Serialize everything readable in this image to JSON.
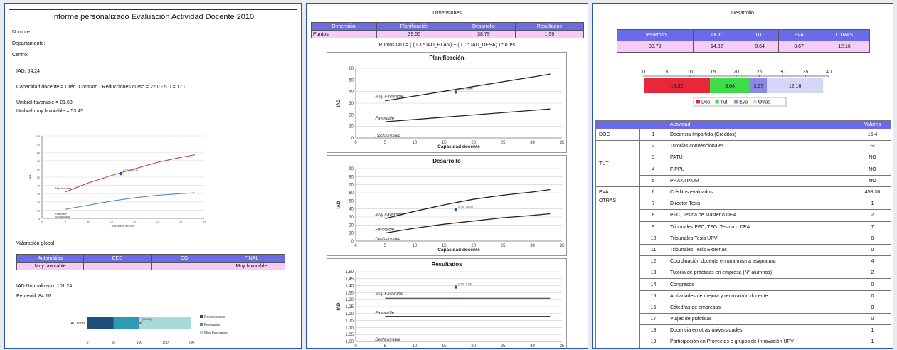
{
  "report": {
    "title": "Informe personalizado Evaluación Actividad Docente 2010",
    "nombre": "Nombre:",
    "departamento": "Departamento:",
    "centro": "Centro:",
    "iad": "IAD:  54.24",
    "capacidad": "Capacidad docente = Créd. Contrato - Reducciones curso = 22.0 - 5.0 = 17.0",
    "umbral_fav": "Umbral favorable = 21.63",
    "umbral_muy": "Umbral muy favorable = 53.45",
    "valoracion": "Valoración global",
    "val_headers": [
      "Automática",
      "CED",
      "CG",
      "FINAL"
    ],
    "val_values": [
      "Muy favorable",
      "",
      "",
      "Muy favorable"
    ],
    "iad_norm": "IAD Normalizado: 101.24",
    "percentil": "Percentil: 84.16"
  },
  "chart_p1": {
    "type": "line",
    "xlabel": "Capacidad docente",
    "ylabel": "IAD",
    "ylim": [
      0,
      100
    ],
    "xlim": [
      0,
      35
    ],
    "yticks": [
      "100",
      "90",
      "80",
      "70",
      "60",
      "50",
      "40",
      "30",
      "20",
      "10",
      "0"
    ],
    "xticks": [
      "0",
      "5",
      "10",
      "15",
      "20",
      "25",
      "30",
      "35"
    ],
    "labels": [
      "Muy favorable",
      "Favorable",
      "Desfavorable"
    ],
    "point_label": "(17.0 , 54.24)",
    "point": [
      17,
      54.24
    ],
    "series": [
      {
        "x": [
          5,
          10,
          15,
          20,
          25,
          30,
          33
        ],
        "y": [
          32,
          43,
          52,
          60,
          68,
          74,
          77
        ],
        "color": "#c0392b"
      },
      {
        "x": [
          5,
          10,
          15,
          20,
          25,
          30,
          33
        ],
        "y": [
          11,
          16,
          21,
          25,
          28,
          30,
          31
        ],
        "color": "#4a7fb5"
      }
    ]
  },
  "bar_p1": {
    "category": "IAD norm",
    "xticks": [
      "0",
      "50",
      "100",
      "150",
      "200"
    ],
    "xlim": [
      0,
      200
    ],
    "segments": [
      {
        "name": "Desfavorable",
        "value": 50,
        "color": "#1f4e79"
      },
      {
        "name": "Favorable",
        "value": 50,
        "color": "#2e9bb5"
      },
      {
        "name": "Muy Favorable",
        "value": 100,
        "color": "#a8d8d8"
      }
    ],
    "point": 101.24,
    "point_label": "(101.24)"
  },
  "dimensiones": {
    "title": "Dimensiones",
    "headers": [
      "Dimensión",
      "Planificación",
      "Desarrollo",
      "Resultados"
    ],
    "row": [
      "Puntos",
      "39.55",
      "38.79",
      "1.39"
    ],
    "formula": "Puntos IAD = ( (0.3 * IAD_PLAN) + (0.7 * IAD_DESA) ) * Kres"
  },
  "charts_p2": [
    {
      "type": "line",
      "title": "Planificación",
      "ylabel": "IAD",
      "xlabel": "Capacidad docente",
      "yticks": [
        "60",
        "50",
        "40",
        "30",
        "20",
        "10",
        "0"
      ],
      "xticks": [
        "0",
        "5",
        "10",
        "15",
        "20",
        "25",
        "30",
        "35"
      ],
      "ylim": [
        0,
        60
      ],
      "labels": [
        "Muy Favorable",
        "Favorable",
        "Desfavorable"
      ],
      "point": [
        17,
        39.55
      ],
      "point_label": "(17.0 , 39.55)",
      "series": [
        {
          "x": [
            5,
            33
          ],
          "y": [
            32,
            55
          ]
        },
        {
          "x": [
            5,
            33
          ],
          "y": [
            14,
            25
          ]
        }
      ]
    },
    {
      "type": "line",
      "title": "Desarrollo",
      "ylabel": "IAD",
      "xlabel": "Capacidad docente",
      "yticks": [
        "90",
        "80",
        "70",
        "60",
        "50",
        "40",
        "30",
        "20",
        "10",
        "0"
      ],
      "xticks": [
        "0",
        "5",
        "10",
        "15",
        "20",
        "25",
        "30",
        "35"
      ],
      "ylim": [
        0,
        90
      ],
      "labels": [
        "Muy Favorable",
        "Favorable",
        "Desfavorable"
      ],
      "point": [
        17,
        38.79
      ],
      "point_label": "(17.0 , 38.79)",
      "series": [
        {
          "x": [
            5,
            10,
            15,
            20,
            25,
            30,
            33
          ],
          "y": [
            28,
            37,
            45,
            52,
            57,
            61,
            64
          ]
        },
        {
          "x": [
            5,
            10,
            15,
            20,
            25,
            30,
            33
          ],
          "y": [
            10,
            16,
            21,
            25,
            29,
            32,
            34
          ]
        }
      ]
    },
    {
      "type": "line",
      "title": "Resultados",
      "ylabel": "IAD",
      "xlabel": "",
      "yticks": [
        "1,50",
        "1,45",
        "1,40",
        "1,35",
        "1,30",
        "1,25",
        "1,20",
        "1,15",
        "1,10",
        "1,05",
        "1,00"
      ],
      "xticks": [
        "0",
        "5",
        "10",
        "15",
        "20",
        "25",
        "30",
        "35"
      ],
      "ylim": [
        1.0,
        1.5
      ],
      "labels": [
        "Muy Favorable",
        "Favorable",
        "Desfavorable"
      ],
      "point": [
        17,
        1.39
      ],
      "point_label": "(17.0 , 1.39)",
      "series": [
        {
          "x": [
            5,
            33
          ],
          "y": [
            1.31,
            1.31
          ]
        },
        {
          "x": [
            5,
            33
          ],
          "y": [
            1.18,
            1.18
          ]
        }
      ]
    }
  ],
  "desarrollo": {
    "title": "Desarrollo",
    "headers": [
      "Desarrollo",
      "DOC",
      "TUT",
      "EVA",
      "OTRAS"
    ],
    "row": [
      "38.79",
      "14.32",
      "8.64",
      "3.67",
      "12.16"
    ],
    "bar": {
      "xticks": [
        "0",
        "5",
        "10",
        "15",
        "20",
        "25",
        "30",
        "35",
        "40"
      ],
      "xlim": [
        0,
        40
      ],
      "segments": [
        {
          "name": "Doc",
          "value": 14.32,
          "label": "14.32",
          "color": "#e8283a"
        },
        {
          "name": "Tut",
          "value": 8.64,
          "label": "8.64",
          "color": "#3ddc48"
        },
        {
          "name": "Eva",
          "value": 3.67,
          "label": "3.67",
          "color": "#8a8ae6"
        },
        {
          "name": "Otras",
          "value": 12.16,
          "label": "12.16",
          "color": "#d6d6f6"
        }
      ]
    }
  },
  "actividades": {
    "headers": [
      "",
      "",
      "Actividad",
      "Valores"
    ],
    "groups": [
      {
        "name": "DOC",
        "span": 1
      },
      {
        "name": "TUT",
        "span": 4
      },
      {
        "name": "EVA",
        "span": 1
      },
      {
        "name": "OTRAS",
        "span": 13
      }
    ],
    "rows": [
      {
        "n": "1",
        "actividad": "Docencia Impartida (Créditos)",
        "valor": "15.4"
      },
      {
        "n": "2",
        "actividad": "Tutorías convencionales",
        "valor": "SI"
      },
      {
        "n": "3",
        "actividad": "PATU",
        "valor": "NO"
      },
      {
        "n": "4",
        "actividad": "FIPPU",
        "valor": "NO"
      },
      {
        "n": "5",
        "actividad": "PRAKTIKUM",
        "valor": "NO"
      },
      {
        "n": "6",
        "actividad": "Créditos evaluados",
        "valor": "458.36"
      },
      {
        "n": "7",
        "actividad": "Director Tesis",
        "valor": "1"
      },
      {
        "n": "8",
        "actividad": "PFC, Tesina de Máster o DEA",
        "valor": "2"
      },
      {
        "n": "9",
        "actividad": "Tribunales  PFC, TFG, Tesina o DEA",
        "valor": "7"
      },
      {
        "n": "10",
        "actividad": "Tribunales Tesis UPV",
        "valor": "0"
      },
      {
        "n": "11",
        "actividad": "Tribunales Tesis Externas",
        "valor": "0"
      },
      {
        "n": "12",
        "actividad": "Coordinación docente en una misma asignatura",
        "valor": "4"
      },
      {
        "n": "13",
        "actividad": "Tutoría de prácticas en empresa (Nº alumnos)",
        "valor": "2"
      },
      {
        "n": "14",
        "actividad": "Congresos",
        "valor": "0"
      },
      {
        "n": "15",
        "actividad": "Actividades de mejora y renovación docente",
        "valor": "0"
      },
      {
        "n": "16",
        "actividad": "Cátedras de empresas",
        "valor": "0"
      },
      {
        "n": "17",
        "actividad": "Viajes de prácticas",
        "valor": "0"
      },
      {
        "n": "18",
        "actividad": "Docencia en otras universidades",
        "valor": "1"
      },
      {
        "n": "19",
        "actividad": "Participación en Proyectos  o grupos de Innovación UPV",
        "valor": "1"
      }
    ]
  }
}
